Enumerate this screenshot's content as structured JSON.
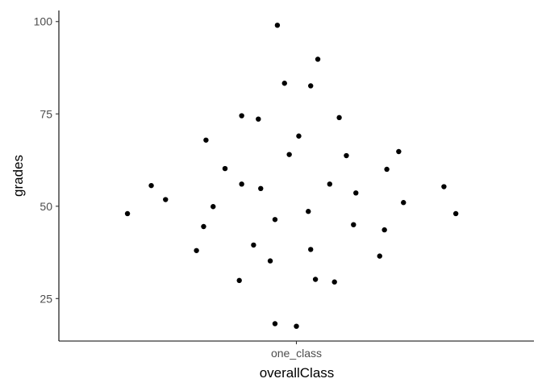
{
  "chart_data": {
    "type": "scatter",
    "title": "",
    "xlabel": "overallClass",
    "ylabel": "grades",
    "categories": [
      "one_class"
    ],
    "ylim": [
      13.5,
      103
    ],
    "yticks": [
      25,
      50,
      75,
      100
    ],
    "grid": false,
    "legend": "none",
    "point_color": "#000000",
    "series": [
      {
        "category": "one_class",
        "points": [
          {
            "x": -0.71,
            "y": 48.0
          },
          {
            "x": -0.61,
            "y": 55.6
          },
          {
            "x": -0.55,
            "y": 51.8
          },
          {
            "x": -0.42,
            "y": 38.0
          },
          {
            "x": -0.39,
            "y": 44.5
          },
          {
            "x": -0.38,
            "y": 67.9
          },
          {
            "x": -0.35,
            "y": 49.9
          },
          {
            "x": -0.3,
            "y": 60.2
          },
          {
            "x": -0.24,
            "y": 29.9
          },
          {
            "x": -0.23,
            "y": 74.5
          },
          {
            "x": -0.23,
            "y": 56.0
          },
          {
            "x": -0.18,
            "y": 39.5
          },
          {
            "x": -0.16,
            "y": 73.6
          },
          {
            "x": -0.15,
            "y": 54.8
          },
          {
            "x": -0.11,
            "y": 35.2
          },
          {
            "x": -0.09,
            "y": 46.4
          },
          {
            "x": -0.09,
            "y": 18.2
          },
          {
            "x": -0.08,
            "y": 99.0
          },
          {
            "x": -0.05,
            "y": 83.3
          },
          {
            "x": -0.03,
            "y": 64.0
          },
          {
            "x": 0.0,
            "y": 17.5
          },
          {
            "x": 0.01,
            "y": 69.0
          },
          {
            "x": 0.05,
            "y": 48.6
          },
          {
            "x": 0.06,
            "y": 82.6
          },
          {
            "x": 0.06,
            "y": 38.3
          },
          {
            "x": 0.08,
            "y": 30.2
          },
          {
            "x": 0.09,
            "y": 89.8
          },
          {
            "x": 0.14,
            "y": 56.0
          },
          {
            "x": 0.16,
            "y": 29.5
          },
          {
            "x": 0.18,
            "y": 74.0
          },
          {
            "x": 0.21,
            "y": 63.7
          },
          {
            "x": 0.24,
            "y": 45.0
          },
          {
            "x": 0.25,
            "y": 53.6
          },
          {
            "x": 0.35,
            "y": 36.5
          },
          {
            "x": 0.37,
            "y": 43.6
          },
          {
            "x": 0.38,
            "y": 60.0
          },
          {
            "x": 0.43,
            "y": 64.8
          },
          {
            "x": 0.45,
            "y": 51.0
          },
          {
            "x": 0.62,
            "y": 55.3
          },
          {
            "x": 0.67,
            "y": 48.0
          }
        ]
      }
    ]
  }
}
